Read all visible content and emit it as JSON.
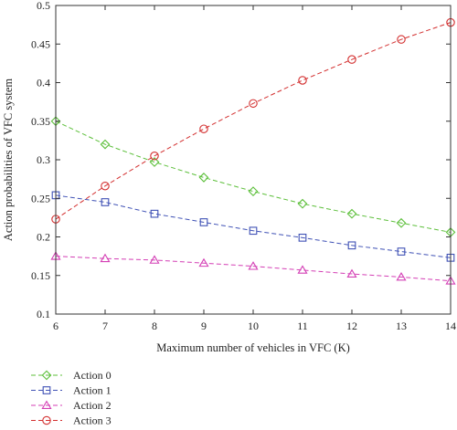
{
  "chart_data": {
    "type": "line",
    "title": "",
    "xlabel": "Maximum number of vehicles in VFC (K)",
    "ylabel": "Action probabilities of VFC system",
    "xlim": [
      6,
      14
    ],
    "ylim": [
      0.1,
      0.5
    ],
    "x": [
      6,
      7,
      8,
      9,
      10,
      11,
      12,
      13,
      14
    ],
    "xticks": [
      "6",
      "7",
      "8",
      "9",
      "10",
      "11",
      "12",
      "13",
      "14"
    ],
    "yticks": [
      "0.1",
      "0.15",
      "0.2",
      "0.25",
      "0.3",
      "0.35",
      "0.4",
      "0.45",
      "0.5"
    ],
    "grid": false,
    "legend_position": "below plot, left",
    "series": [
      {
        "name": "Action 0",
        "color": "#5cbf3a",
        "marker": "diamond",
        "values": [
          0.35,
          0.32,
          0.297,
          0.277,
          0.259,
          0.243,
          0.23,
          0.218,
          0.206
        ]
      },
      {
        "name": "Action 1",
        "color": "#3f51b5",
        "marker": "square",
        "values": [
          0.254,
          0.245,
          0.23,
          0.219,
          0.208,
          0.199,
          0.189,
          0.181,
          0.173
        ]
      },
      {
        "name": "Action 2",
        "color": "#d43fb5",
        "marker": "triangle",
        "values": [
          0.175,
          0.172,
          0.17,
          0.166,
          0.162,
          0.157,
          0.152,
          0.148,
          0.143
        ]
      },
      {
        "name": "Action 3",
        "color": "#d32f2f",
        "marker": "circle",
        "values": [
          0.223,
          0.266,
          0.305,
          0.34,
          0.373,
          0.403,
          0.43,
          0.456,
          0.478
        ]
      }
    ]
  }
}
